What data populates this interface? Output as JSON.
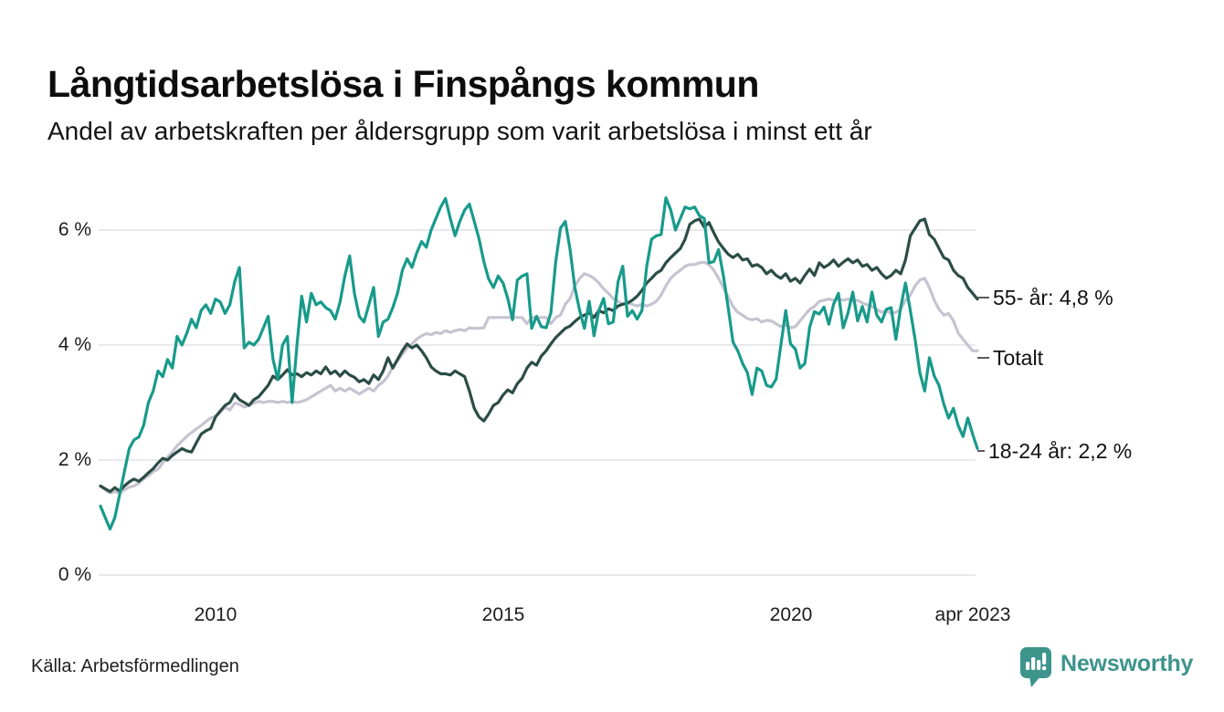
{
  "header": {
    "title": "Långtidsarbetslösa i Finspångs kommun",
    "subtitle": "Andel av arbetskraften per åldersgrupp som varit arbetslösa i minst ett år"
  },
  "chart_data": {
    "type": "line",
    "title": "Långtidsarbetslösa i Finspångs kommun",
    "subtitle": "Andel av arbetskraften per åldersgrupp som varit arbetslösa i minst ett år",
    "unit": "%",
    "x_start": "2008-01",
    "x_end": "2023-04",
    "x_frequency": "monthly",
    "x_tick_labels": [
      "2010",
      "2015",
      "2020",
      "apr 2023"
    ],
    "y_tick_labels": [
      "0 %",
      "2 %",
      "4 %",
      "6 %"
    ],
    "y_tick_values": [
      0,
      2,
      4,
      6
    ],
    "ylim": [
      0,
      6.8
    ],
    "grid": "horizontal",
    "legend_position": "end-labels-right",
    "colors": {
      "teal": "#189a8b",
      "dark_green": "#2b4d45",
      "light_gray": "#c6c4d0",
      "gridline": "#e9e8ec"
    },
    "series": [
      {
        "name": "Totalt",
        "end_label": "Totalt",
        "color": "#c6c4d0",
        "values": [
          1.55,
          1.48,
          1.43,
          1.45,
          1.43,
          1.48,
          1.53,
          1.55,
          1.6,
          1.67,
          1.73,
          1.8,
          1.84,
          1.95,
          2.05,
          2.14,
          2.25,
          2.33,
          2.41,
          2.48,
          2.54,
          2.6,
          2.67,
          2.73,
          2.76,
          2.83,
          2.92,
          2.87,
          2.99,
          2.97,
          2.92,
          2.95,
          2.99,
          3.02,
          3.0,
          3.02,
          3.02,
          3.0,
          3.02,
          3.0,
          3.02,
          3.0,
          3.02,
          3.05,
          3.1,
          3.15,
          3.2,
          3.25,
          3.3,
          3.2,
          3.25,
          3.2,
          3.25,
          3.2,
          3.15,
          3.2,
          3.25,
          3.2,
          3.3,
          3.36,
          3.46,
          3.62,
          3.73,
          3.84,
          3.95,
          4.02,
          4.1,
          4.16,
          4.2,
          4.18,
          4.22,
          4.2,
          4.25,
          4.22,
          4.25,
          4.27,
          4.25,
          4.3,
          4.29,
          4.29,
          4.3,
          4.48,
          4.48,
          4.48,
          4.48,
          4.48,
          4.48,
          4.48,
          4.48,
          4.37,
          4.48,
          4.48,
          4.48,
          4.48,
          4.37,
          4.48,
          4.52,
          4.71,
          4.81,
          5.03,
          5.16,
          5.24,
          5.21,
          5.16,
          5.08,
          4.98,
          4.9,
          4.81,
          4.76,
          4.71,
          4.73,
          4.71,
          4.68,
          4.71,
          4.68,
          4.71,
          4.76,
          4.87,
          5.03,
          5.16,
          5.24,
          5.3,
          5.37,
          5.4,
          5.4,
          5.43,
          5.44,
          5.4,
          5.3,
          5.16,
          5.0,
          4.84,
          4.67,
          4.57,
          4.52,
          4.46,
          4.44,
          4.46,
          4.4,
          4.43,
          4.42,
          4.37,
          4.32,
          4.35,
          4.3,
          4.32,
          4.42,
          4.52,
          4.62,
          4.67,
          4.76,
          4.78,
          4.8,
          4.78,
          4.8,
          4.78,
          4.8,
          4.76,
          4.78,
          4.73,
          4.7,
          4.67,
          4.62,
          4.57,
          4.6,
          4.55,
          4.57,
          4.62,
          4.78,
          4.87,
          5.03,
          5.13,
          5.16,
          5.0,
          4.78,
          4.62,
          4.52,
          4.55,
          4.42,
          4.21,
          4.1,
          4.0,
          3.9,
          3.9
        ]
      },
      {
        "name": "55- år",
        "end_label": "55- år: 4,8 %",
        "end_value_text": "4,8 %",
        "color": "#2b4d45",
        "values": [
          1.55,
          1.5,
          1.45,
          1.52,
          1.46,
          1.55,
          1.62,
          1.67,
          1.63,
          1.7,
          1.78,
          1.85,
          1.95,
          2.03,
          2.0,
          2.08,
          2.14,
          2.2,
          2.16,
          2.14,
          2.3,
          2.45,
          2.51,
          2.55,
          2.75,
          2.85,
          2.95,
          3.0,
          3.15,
          3.05,
          3.0,
          2.95,
          3.05,
          3.1,
          3.2,
          3.3,
          3.46,
          3.4,
          3.48,
          3.57,
          3.48,
          3.5,
          3.45,
          3.52,
          3.48,
          3.55,
          3.5,
          3.62,
          3.5,
          3.55,
          3.46,
          3.55,
          3.48,
          3.44,
          3.36,
          3.4,
          3.33,
          3.48,
          3.4,
          3.55,
          3.78,
          3.6,
          3.75,
          3.9,
          4.02,
          3.95,
          4.0,
          3.9,
          3.78,
          3.62,
          3.55,
          3.5,
          3.5,
          3.48,
          3.55,
          3.5,
          3.45,
          3.2,
          2.9,
          2.75,
          2.68,
          2.8,
          2.95,
          3.0,
          3.13,
          3.22,
          3.17,
          3.33,
          3.42,
          3.6,
          3.7,
          3.65,
          3.81,
          3.9,
          4.02,
          4.13,
          4.21,
          4.29,
          4.33,
          4.41,
          4.48,
          4.52,
          4.56,
          4.48,
          4.6,
          4.56,
          4.63,
          4.6,
          4.68,
          4.71,
          4.73,
          4.78,
          4.85,
          4.95,
          5.08,
          5.16,
          5.25,
          5.3,
          5.43,
          5.52,
          5.6,
          5.68,
          5.84,
          6.1,
          6.16,
          6.19,
          6.05,
          6.13,
          5.95,
          5.79,
          5.68,
          5.58,
          5.52,
          5.58,
          5.48,
          5.5,
          5.37,
          5.4,
          5.35,
          5.24,
          5.3,
          5.21,
          5.16,
          5.24,
          5.11,
          5.16,
          5.08,
          5.21,
          5.32,
          5.21,
          5.43,
          5.35,
          5.4,
          5.48,
          5.37,
          5.44,
          5.5,
          5.43,
          5.48,
          5.37,
          5.4,
          5.3,
          5.35,
          5.24,
          5.16,
          5.21,
          5.3,
          5.24,
          5.48,
          5.9,
          6.03,
          6.16,
          6.19,
          5.92,
          5.84,
          5.68,
          5.52,
          5.48,
          5.3,
          5.21,
          5.16,
          5.0,
          4.9,
          4.8
        ]
      },
      {
        "name": "18-24 år",
        "end_label": "18-24 år: 2,2 %",
        "end_value_text": "2,2 %",
        "color": "#189a8b",
        "values": [
          1.2,
          1.0,
          0.8,
          1.0,
          1.4,
          1.8,
          2.2,
          2.35,
          2.4,
          2.6,
          3.0,
          3.2,
          3.55,
          3.45,
          3.75,
          3.6,
          4.15,
          4.0,
          4.2,
          4.45,
          4.3,
          4.6,
          4.7,
          4.55,
          4.8,
          4.75,
          4.55,
          4.7,
          5.1,
          5.35,
          3.95,
          4.05,
          4.0,
          4.1,
          4.3,
          4.5,
          3.75,
          3.4,
          4.0,
          4.15,
          3.0,
          4.0,
          4.85,
          4.4,
          4.9,
          4.7,
          4.75,
          4.65,
          4.6,
          4.45,
          4.75,
          5.2,
          5.55,
          4.9,
          4.5,
          4.4,
          4.7,
          5.0,
          4.15,
          4.4,
          4.45,
          4.65,
          4.9,
          5.3,
          5.5,
          5.35,
          5.6,
          5.8,
          5.7,
          6.0,
          6.2,
          6.4,
          6.55,
          6.2,
          5.9,
          6.15,
          6.35,
          6.45,
          6.15,
          5.85,
          5.45,
          5.15,
          5.0,
          5.2,
          5.08,
          4.81,
          4.44,
          5.13,
          5.2,
          5.24,
          4.29,
          4.5,
          4.32,
          4.3,
          4.56,
          5.45,
          6.03,
          6.15,
          5.66,
          5.0,
          4.6,
          4.29,
          4.76,
          4.16,
          4.6,
          4.81,
          4.37,
          4.4,
          5.1,
          5.37,
          4.5,
          4.6,
          4.45,
          4.6,
          5.37,
          5.84,
          5.9,
          5.92,
          6.56,
          6.35,
          6.0,
          6.2,
          6.4,
          6.37,
          6.4,
          6.25,
          6.2,
          5.43,
          5.45,
          5.66,
          5.2,
          4.65,
          4.05,
          3.9,
          3.68,
          3.52,
          3.14,
          3.6,
          3.55,
          3.3,
          3.27,
          3.41,
          4.0,
          4.6,
          4.02,
          3.93,
          3.6,
          3.68,
          4.31,
          4.58,
          4.54,
          4.66,
          4.36,
          4.71,
          4.9,
          4.3,
          4.56,
          4.92,
          4.42,
          4.67,
          4.4,
          4.92,
          4.52,
          4.4,
          4.62,
          4.65,
          4.1,
          4.66,
          5.08,
          4.6,
          4.1,
          3.52,
          3.2,
          3.78,
          3.46,
          3.3,
          2.97,
          2.73,
          2.9,
          2.6,
          2.41,
          2.73,
          2.45,
          2.2
        ]
      }
    ]
  },
  "footer": {
    "source": "Källa: Arbetsförmedlingen",
    "brand_name": "Newsworthy",
    "brand_color": "#3c948b"
  }
}
